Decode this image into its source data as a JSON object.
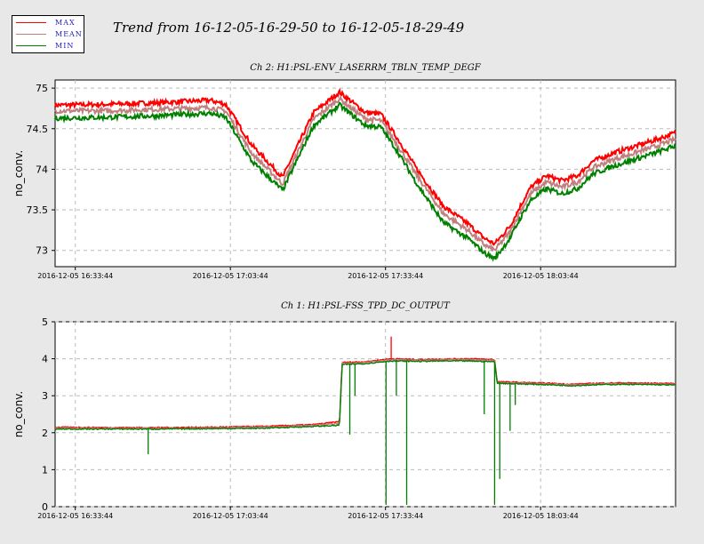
{
  "legend": {
    "items": [
      {
        "label": "MAX",
        "color": "#ff0000"
      },
      {
        "label": "MEAN",
        "color": "#c08080"
      },
      {
        "label": "MIN",
        "color": "#008000"
      }
    ]
  },
  "title": "Trend from 16-12-05-16-29-50 to 16-12-05-18-29-49",
  "chart_data": [
    {
      "type": "line",
      "title": "Ch 2: H1:PSL-ENV_LASERRM_TBLN_TEMP_DEGF",
      "ylabel": "no_conv.",
      "xlabel": "",
      "ylim": [
        72.8,
        75.1
      ],
      "yticks": [
        73,
        73.5,
        74,
        74.5,
        75
      ],
      "ytick_labels": [
        "73",
        "73.5",
        "74",
        "74.5",
        "75"
      ],
      "xlim": [
        0,
        120
      ],
      "x_unit": "minutes",
      "xticks": [
        3.9,
        33.9,
        63.9,
        93.9
      ],
      "xtick_labels": [
        "2016-12-05 16:33:44",
        "2016-12-05 17:03:44",
        "2016-12-05 17:33:44",
        "2016-12-05 18:03:44"
      ],
      "grid": true,
      "x": [
        0,
        10,
        20,
        30,
        33,
        38,
        44,
        50,
        55,
        60,
        63,
        66,
        70,
        75,
        80,
        83,
        85,
        88,
        90,
        92,
        95,
        98,
        101,
        104,
        108,
        112,
        116,
        120
      ],
      "series": [
        {
          "name": "MAX",
          "color": "#ff0000",
          "values": [
            74.79,
            74.8,
            74.82,
            74.85,
            74.8,
            74.3,
            73.9,
            74.7,
            74.95,
            74.7,
            74.68,
            74.4,
            74.0,
            73.55,
            73.32,
            73.15,
            73.08,
            73.3,
            73.55,
            73.78,
            73.92,
            73.86,
            73.92,
            74.1,
            74.2,
            74.28,
            74.36,
            74.45
          ]
        },
        {
          "name": "MEAN",
          "color": "#c08080",
          "values": [
            74.72,
            74.72,
            74.74,
            74.76,
            74.72,
            74.2,
            73.82,
            74.62,
            74.87,
            74.62,
            74.6,
            74.32,
            73.92,
            73.46,
            73.24,
            73.07,
            73.0,
            73.23,
            73.48,
            73.7,
            73.84,
            73.78,
            73.84,
            74.02,
            74.12,
            74.2,
            74.28,
            74.37
          ]
        },
        {
          "name": "MIN",
          "color": "#008000",
          "values": [
            74.63,
            74.64,
            74.66,
            74.69,
            74.64,
            74.1,
            73.74,
            74.54,
            74.79,
            74.54,
            74.52,
            74.24,
            73.82,
            73.35,
            73.14,
            72.97,
            72.9,
            73.15,
            73.4,
            73.62,
            73.76,
            73.7,
            73.76,
            73.94,
            74.04,
            74.12,
            74.2,
            74.29
          ]
        }
      ]
    },
    {
      "type": "line",
      "title": "Ch 1: H1:PSL-FSS_TPD_DC_OUTPUT",
      "ylabel": "no_conv.",
      "xlabel": "",
      "ylim": [
        0,
        5
      ],
      "yticks": [
        0,
        1,
        2,
        3,
        4,
        5
      ],
      "ytick_labels": [
        "0",
        "1",
        "2",
        "3",
        "4",
        "5"
      ],
      "xlim": [
        0,
        120
      ],
      "x_unit": "minutes",
      "xticks": [
        3.9,
        33.9,
        63.9,
        93.9
      ],
      "xtick_labels": [
        "2016-12-05 16:33:44",
        "2016-12-05 17:03:44",
        "2016-12-05 17:33:44",
        "2016-12-05 18:03:44"
      ],
      "grid": true,
      "x": [
        0,
        10,
        20,
        30,
        40,
        50,
        55,
        55.5,
        60,
        65,
        70,
        75,
        80,
        85,
        85.5,
        90,
        95,
        100,
        105,
        110,
        115,
        120
      ],
      "series": [
        {
          "name": "MAX",
          "color": "#ff0000",
          "values": [
            2.15,
            2.14,
            2.14,
            2.15,
            2.17,
            2.22,
            2.3,
            3.9,
            3.92,
            4.0,
            3.98,
            3.99,
            4.0,
            3.98,
            3.38,
            3.36,
            3.34,
            3.31,
            3.34,
            3.35,
            3.34,
            3.33
          ]
        },
        {
          "name": "MEAN",
          "color": "#c08080",
          "values": [
            2.13,
            2.12,
            2.12,
            2.13,
            2.15,
            2.2,
            2.25,
            3.87,
            3.9,
            3.97,
            3.96,
            3.97,
            3.97,
            3.95,
            3.36,
            3.34,
            3.32,
            3.29,
            3.32,
            3.33,
            3.32,
            3.31
          ]
        },
        {
          "name": "MIN",
          "color": "#008000",
          "values": [
            2.1,
            2.1,
            2.1,
            2.11,
            2.12,
            2.17,
            2.2,
            3.84,
            3.87,
            3.94,
            3.93,
            3.94,
            3.94,
            3.92,
            3.34,
            3.32,
            3.3,
            3.27,
            3.3,
            3.31,
            3.3,
            3.29
          ]
        }
      ],
      "glitches": [
        {
          "x": 18,
          "series": "MIN",
          "value": 1.42
        },
        {
          "x": 57,
          "series": "MIN",
          "value": 1.95
        },
        {
          "x": 58,
          "series": "MIN",
          "value": 3.0
        },
        {
          "x": 64,
          "series": "MIN",
          "value": 0.05
        },
        {
          "x": 65,
          "series": "MAX",
          "value": 4.6
        },
        {
          "x": 66,
          "series": "MIN",
          "value": 3.0
        },
        {
          "x": 68,
          "series": "MIN",
          "value": 0.05
        },
        {
          "x": 83,
          "series": "MIN",
          "value": 2.5
        },
        {
          "x": 85,
          "series": "MIN",
          "value": 0.05
        },
        {
          "x": 86,
          "series": "MIN",
          "value": 0.75
        },
        {
          "x": 88,
          "series": "MIN",
          "value": 2.05
        },
        {
          "x": 89,
          "series": "MIN",
          "value": 2.75
        }
      ]
    }
  ]
}
